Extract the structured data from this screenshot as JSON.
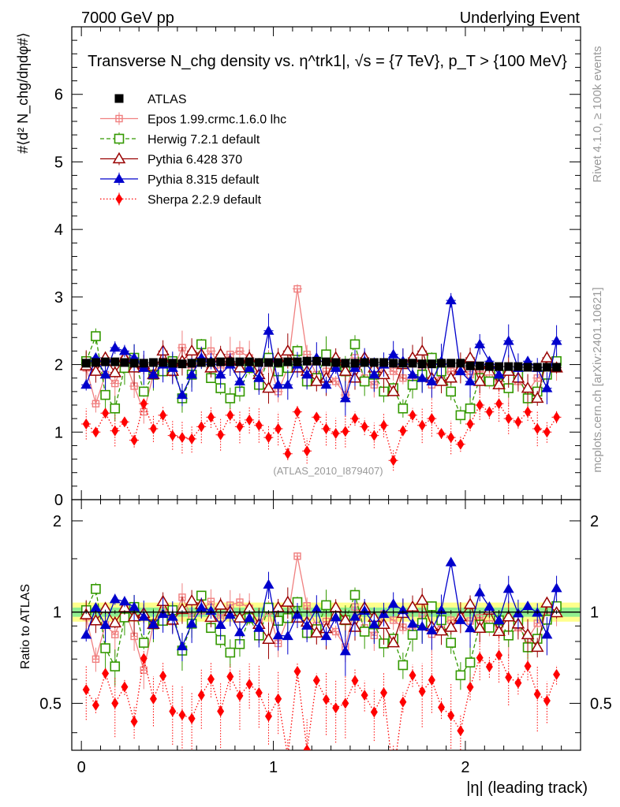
{
  "header": {
    "left": "7000 GeV pp",
    "right": "Underlying Event"
  },
  "side": {
    "rivet": "Rivet 4.1.0, ≥ 100k events",
    "mcplots": "mcplots.cern.ch [arXiv:2401.10621]"
  },
  "chart_data": {
    "type": "scatter",
    "title": "Transverse N_chg density vs. η^trk1|, √s = {7 TeV}, p_T > {100 MeV}",
    "xlabel": "|η| (leading track)",
    "ylabel": "#⟨d² N_chg/dηdφ#⟩",
    "ratio_ylabel": "Ratio to ATLAS",
    "watermark": "(ATLAS_2010_I879407)",
    "xlim": [
      -0.05,
      2.6
    ],
    "ylim": [
      0,
      7
    ],
    "ratio_ylim": [
      0.35,
      2.35
    ],
    "xticks": [
      "0",
      "1",
      "2"
    ],
    "yticks": [
      "0",
      "1",
      "2",
      "3",
      "4",
      "5",
      "6"
    ],
    "ratio_yticks": [
      "0.5",
      "1",
      "2"
    ],
    "x": [
      0.025,
      0.075,
      0.125,
      0.175,
      0.225,
      0.275,
      0.325,
      0.375,
      0.425,
      0.475,
      0.525,
      0.575,
      0.625,
      0.675,
      0.725,
      0.775,
      0.825,
      0.875,
      0.925,
      0.975,
      1.025,
      1.075,
      1.125,
      1.175,
      1.225,
      1.275,
      1.325,
      1.375,
      1.425,
      1.475,
      1.525,
      1.575,
      1.625,
      1.675,
      1.725,
      1.775,
      1.825,
      1.875,
      1.925,
      1.975,
      2.025,
      2.075,
      2.125,
      2.175,
      2.225,
      2.275,
      2.325,
      2.375,
      2.425,
      2.475
    ],
    "series": [
      {
        "name": "ATLAS",
        "color": "#000000",
        "marker": "square-filled",
        "line": "none",
        "values": [
          2.02,
          2.03,
          2.04,
          2.04,
          2.03,
          2.02,
          2.02,
          2.03,
          2.03,
          2.02,
          2.01,
          2.02,
          2.03,
          2.03,
          2.04,
          2.04,
          2.04,
          2.04,
          2.03,
          2.03,
          2.03,
          2.04,
          2.04,
          2.05,
          2.05,
          2.04,
          2.03,
          2.02,
          2.02,
          2.03,
          2.03,
          2.03,
          2.02,
          2.02,
          2.02,
          2.01,
          2.01,
          2.02,
          2.02,
          2.02,
          1.98,
          1.98,
          1.97,
          1.97,
          1.97,
          1.97,
          1.96,
          1.96,
          1.96,
          1.96
        ]
      },
      {
        "name": "Epos 1.99.crmc.1.6.0 lhc",
        "color": "#f08080",
        "marker": "cross-square",
        "line": "solid",
        "values": [
          1.95,
          1.42,
          1.85,
          1.72,
          2.08,
          1.68,
          1.3,
          1.85,
          2.05,
          1.88,
          2.25,
          1.95,
          2.05,
          2.2,
          1.95,
          2.15,
          2.2,
          2.1,
          1.85,
          2.05,
          1.6,
          1.95,
          3.12,
          2.15,
          1.85,
          1.9,
          1.75,
          1.55,
          2.1,
          1.8,
          1.7,
          2.0,
          1.9,
          1.8,
          1.75,
          1.95,
          1.7,
          1.85,
          1.9,
          1.95,
          1.85,
          1.9,
          1.8,
          1.75,
          1.65,
          1.75,
          1.6,
          1.8,
          1.9,
          1.95
        ]
      },
      {
        "name": "Herwig 7.2.1 default",
        "color": "#339900",
        "marker": "open-square",
        "line": "dashed",
        "values": [
          2.05,
          2.42,
          1.55,
          1.35,
          1.95,
          2.1,
          1.6,
          1.85,
          1.9,
          2.05,
          1.5,
          1.85,
          2.3,
          1.8,
          1.65,
          1.5,
          1.6,
          1.95,
          1.7,
          2.1,
          1.9,
          1.95,
          2.2,
          1.75,
          1.8,
          2.15,
          2.0,
          1.9,
          2.3,
          1.75,
          1.85,
          1.6,
          1.65,
          1.35,
          1.7,
          1.85,
          2.1,
          1.9,
          1.6,
          1.25,
          1.35,
          1.8,
          1.75,
          1.85,
          1.65,
          1.85,
          1.5,
          1.6,
          1.85,
          2.05
        ]
      },
      {
        "name": "Pythia 6.428 370",
        "color": "#990000",
        "marker": "open-triangle",
        "line": "solid",
        "values": [
          1.98,
          1.9,
          2.1,
          1.88,
          2.1,
          1.95,
          2.0,
          1.85,
          2.2,
          1.9,
          2.05,
          2.2,
          2.15,
          1.95,
          2.15,
          2.05,
          1.95,
          2.1,
          1.85,
          1.65,
          2.1,
          2.2,
          1.95,
          1.9,
          1.75,
          1.8,
          2.1,
          1.9,
          1.8,
          2.1,
          1.95,
          1.85,
          1.6,
          2.0,
          2.1,
          2.2,
          1.8,
          1.75,
          1.8,
          1.95,
          2.1,
          1.75,
          2.0,
          1.7,
          1.9,
          1.8,
          1.65,
          1.5,
          2.1,
          1.95
        ]
      },
      {
        "name": "Pythia 8.315 default",
        "color": "#0000cc",
        "marker": "filled-triangle",
        "line": "solid",
        "values": [
          1.7,
          2.1,
          1.85,
          2.25,
          2.2,
          2.1,
          1.95,
          1.85,
          2.0,
          1.95,
          1.55,
          1.85,
          2.1,
          2.05,
          1.85,
          2.0,
          1.75,
          1.95,
          1.8,
          2.5,
          1.7,
          1.7,
          2.0,
          1.85,
          2.1,
          1.7,
          1.95,
          1.5,
          1.95,
          2.05,
          1.85,
          2.0,
          2.15,
          2.05,
          1.85,
          1.8,
          1.75,
          2.05,
          2.95,
          1.9,
          1.75,
          2.3,
          2.05,
          1.85,
          2.35,
          1.95,
          2.05,
          1.95,
          1.65,
          2.35
        ]
      },
      {
        "name": "Sherpa 2.2.9 default",
        "color": "#ff0000",
        "marker": "filled-diamond",
        "line": "dotted",
        "values": [
          1.12,
          1.0,
          1.28,
          1.02,
          1.15,
          0.88,
          1.42,
          1.05,
          1.25,
          0.95,
          0.92,
          0.9,
          1.08,
          1.22,
          0.96,
          1.25,
          1.08,
          1.18,
          1.1,
          0.92,
          1.05,
          0.68,
          1.3,
          0.72,
          1.22,
          1.05,
          0.98,
          1.01,
          1.2,
          1.08,
          0.95,
          1.1,
          0.58,
          1.02,
          1.25,
          1.1,
          1.2,
          0.98,
          0.92,
          0.82,
          1.12,
          1.4,
          1.3,
          1.42,
          1.2,
          1.15,
          1.3,
          1.05,
          1.0,
          1.22
        ]
      }
    ]
  }
}
